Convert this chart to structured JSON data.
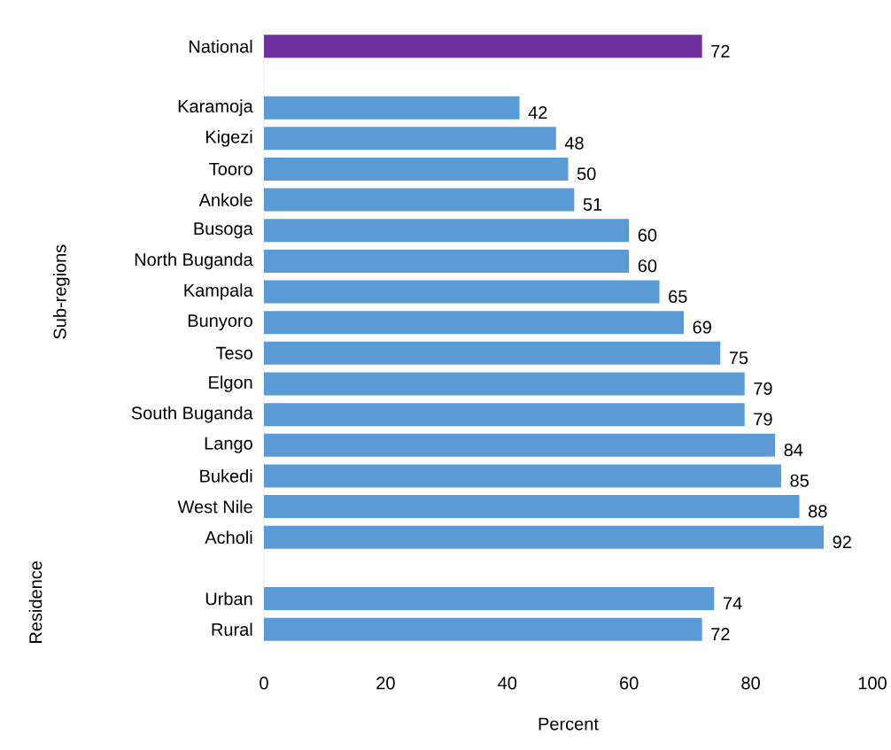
{
  "chart_data": {
    "type": "bar",
    "orientation": "horizontal",
    "xlabel": "Percent",
    "categories": [
      "National",
      null,
      "Karamoja",
      "Kigezi",
      "Tooro",
      "Ankole",
      "Busoga",
      "North Buganda",
      "Kampala",
      "Bunyoro",
      "Teso",
      "Elgon",
      "South Buganda",
      "Lango",
      "Bukedi",
      "West Nile",
      "Acholi",
      null,
      "Urban",
      "Rural"
    ],
    "values": [
      72,
      null,
      42,
      48,
      50,
      51,
      60,
      60,
      65,
      69,
      75,
      79,
      79,
      84,
      85,
      88,
      92,
      null,
      74,
      72
    ],
    "colors": [
      "#7030a0",
      null,
      "#5b9bd5",
      "#5b9bd5",
      "#5b9bd5",
      "#5b9bd5",
      "#5b9bd5",
      "#5b9bd5",
      "#5b9bd5",
      "#5b9bd5",
      "#5b9bd5",
      "#5b9bd5",
      "#5b9bd5",
      "#5b9bd5",
      "#5b9bd5",
      "#5b9bd5",
      "#5b9bd5",
      null,
      "#5b9bd5",
      "#5b9bd5"
    ],
    "xlim": [
      0,
      100
    ],
    "xticks": [
      0,
      20,
      40,
      60,
      80,
      100
    ],
    "data_labels": true,
    "grid": false,
    "annotations": [
      "Sub-regions",
      "Residence"
    ]
  }
}
